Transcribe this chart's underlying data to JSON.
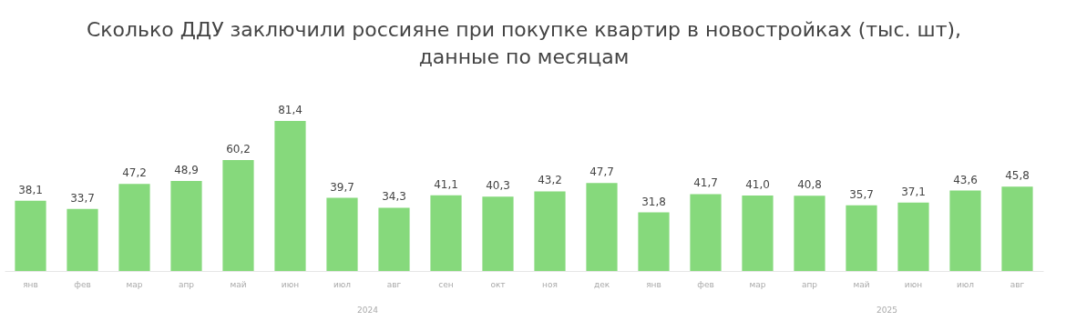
{
  "chart_data": {
    "type": "bar",
    "title": [
      "Сколько ДДУ заключили россияне при покупке квартир в новостройках (тыс. шт),",
      "данные по месяцам"
    ],
    "categories": [
      "янв",
      "фев",
      "мар",
      "апр",
      "май",
      "июн",
      "июл",
      "авг",
      "сен",
      "окт",
      "ноя",
      "дек",
      "янв",
      "фев",
      "мар",
      "апр",
      "май",
      "июн",
      "июл",
      "авг"
    ],
    "values": [
      38.1,
      33.7,
      47.2,
      48.9,
      60.2,
      81.4,
      39.7,
      34.3,
      41.1,
      40.3,
      43.2,
      47.7,
      31.8,
      41.7,
      41.0,
      40.8,
      35.7,
      37.1,
      43.6,
      45.8
    ],
    "value_labels": [
      "38,1",
      "33,7",
      "47,2",
      "48,9",
      "60,2",
      "81,4",
      "39,7",
      "34,3",
      "41,1",
      "40,3",
      "43,2",
      "47,7",
      "31,8",
      "41,7",
      "41,0",
      "40,8",
      "35,7",
      "37,1",
      "43,6",
      "45,8"
    ],
    "color": "#86d97c",
    "annotations": [
      "2024",
      "2025"
    ]
  }
}
